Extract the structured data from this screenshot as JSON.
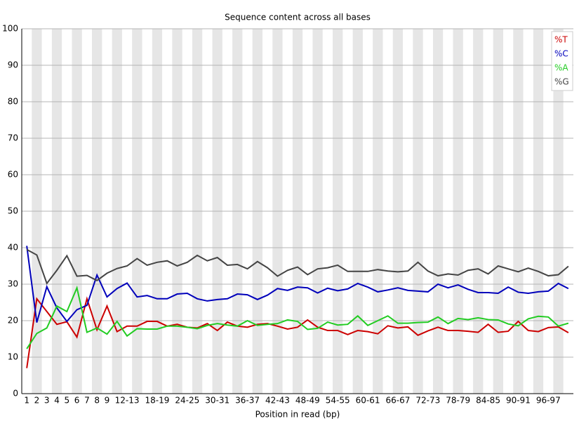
{
  "chart_data": {
    "type": "line",
    "title": "Sequence content across all bases",
    "xlabel": "Position in read (bp)",
    "categories": [
      "1",
      "2",
      "3",
      "4",
      "5",
      "6",
      "7",
      "8",
      "9",
      null,
      "12-13",
      null,
      null,
      "18-19",
      null,
      null,
      "24-25",
      null,
      null,
      "30-31",
      null,
      null,
      "36-37",
      null,
      null,
      "42-43",
      null,
      null,
      "48-49",
      null,
      null,
      "54-55",
      null,
      null,
      "60-61",
      null,
      null,
      "66-67",
      null,
      null,
      "72-73",
      null,
      null,
      "78-79",
      null,
      null,
      "84-85",
      null,
      null,
      "90-91",
      null,
      null,
      "96-97",
      null,
      null
    ],
    "series": [
      {
        "name": "%T",
        "color": "#cc0000",
        "values": [
          7,
          26,
          22.5,
          19,
          19.7,
          15.5,
          26,
          17.5,
          24,
          17,
          18.5,
          18.5,
          19.8,
          19.8,
          18.5,
          19,
          18.2,
          18,
          19.2,
          17.3,
          19.6,
          18.5,
          18.2,
          19,
          19.2,
          18.5,
          17.7,
          18.2,
          20.2,
          18.2,
          17.3,
          17.3,
          16.2,
          17.3,
          17,
          16.4,
          18.6,
          18,
          18.3,
          16,
          17.2,
          18.2,
          17.3,
          17.3,
          17.1,
          16.8,
          19,
          16.8,
          17.1,
          19.8,
          17.3,
          17,
          18.1,
          18.3,
          16.7
        ]
      },
      {
        "name": "%C",
        "color": "#0000bb",
        "values": [
          40.5,
          19.5,
          29.3,
          23.5,
          19.8,
          23,
          24.2,
          32.5,
          26.5,
          28.8,
          30.3,
          26.5,
          26.9,
          26,
          26,
          27.3,
          27.5,
          26,
          25.4,
          25.8,
          26,
          27.3,
          27.1,
          25.8,
          27,
          28.8,
          28.3,
          29.2,
          29,
          27.6,
          28.9,
          28.2,
          28.7,
          30.2,
          29.2,
          27.9,
          28.4,
          29,
          28.3,
          28.1,
          27.9,
          30,
          29,
          29.8,
          28.6,
          27.7,
          27.7,
          27.5,
          29.2,
          27.8,
          27.5,
          27.9,
          28.1,
          30.2,
          28.8
        ]
      },
      {
        "name": "%A",
        "color": "#22cc22",
        "values": [
          12.3,
          16.5,
          18,
          24,
          22.5,
          29,
          16.8,
          18,
          16.3,
          19.8,
          15.8,
          17.8,
          17.7,
          17.7,
          18.5,
          18.5,
          18.2,
          17.8,
          18.7,
          19.2,
          18.8,
          18.5,
          20,
          18.7,
          19,
          19.2,
          20.2,
          19.8,
          17.6,
          17.9,
          19.6,
          18.8,
          19,
          21.3,
          18.7,
          20,
          21.3,
          19.3,
          19.3,
          19.5,
          19.6,
          21,
          19.2,
          20.6,
          20.3,
          20.8,
          20.3,
          20.2,
          19.1,
          18.6,
          20.5,
          21.2,
          21,
          18.5,
          19.3
        ]
      },
      {
        "name": "%G",
        "color": "#444444",
        "values": [
          39.5,
          38,
          30.2,
          33.8,
          37.8,
          32.2,
          32.4,
          31,
          33,
          34.3,
          35,
          37,
          35.2,
          36,
          36.4,
          35,
          36,
          37.9,
          36.4,
          37.3,
          35.2,
          35.4,
          34.2,
          36.2,
          34.5,
          32.2,
          33.8,
          34.7,
          32.6,
          34.2,
          34.5,
          35.2,
          33.5,
          33.5,
          33.5,
          34,
          33.6,
          33.4,
          33.6,
          36,
          33.6,
          32.3,
          32.8,
          32.5,
          33.8,
          34.2,
          32.8,
          35,
          34.2,
          33.4,
          34.4,
          33.5,
          32.3,
          32.6,
          34.9
        ]
      }
    ],
    "ylim": [
      0,
      100
    ],
    "yticks": [
      0,
      10,
      20,
      30,
      40,
      50,
      60,
      70,
      80,
      90,
      100
    ],
    "grid": true,
    "legend": "top-right"
  }
}
